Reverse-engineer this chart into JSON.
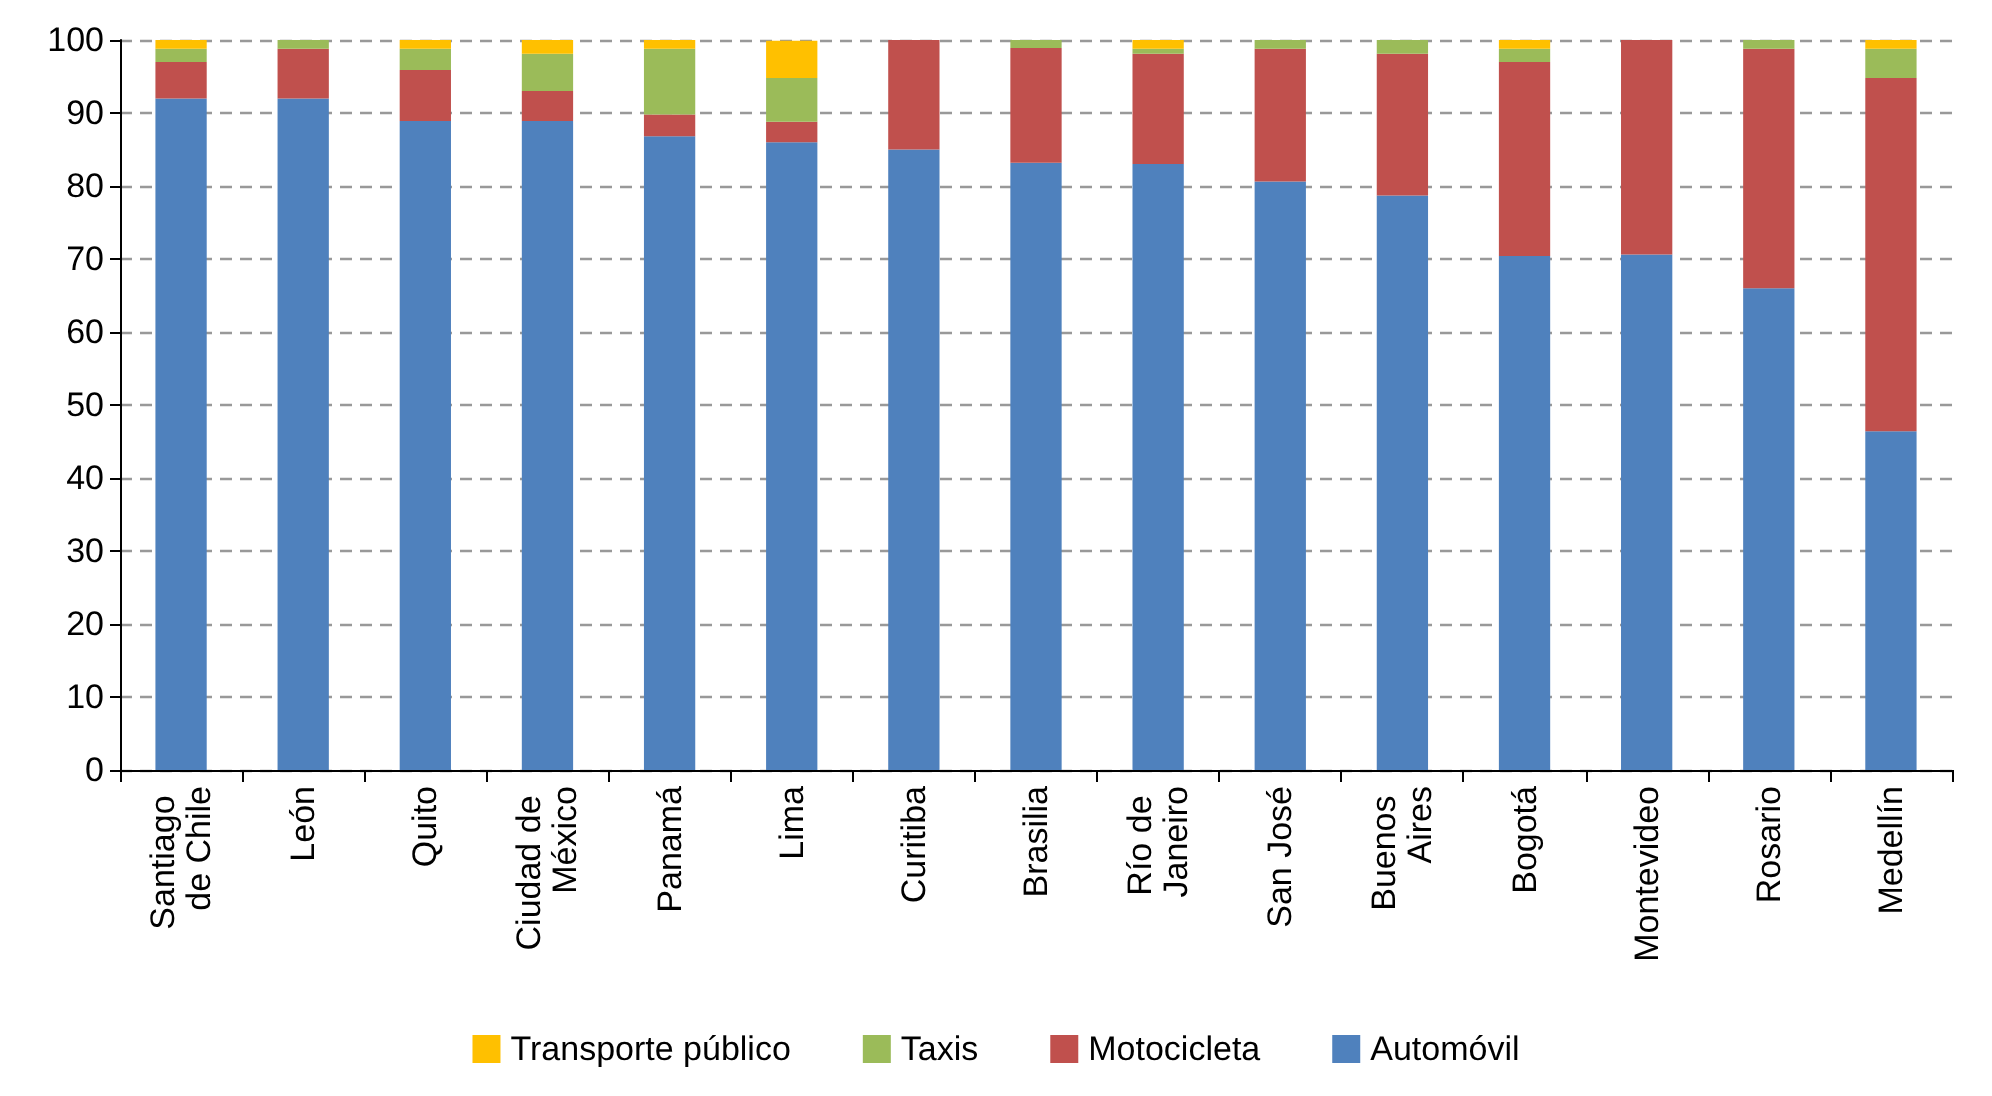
{
  "chart_data": {
    "type": "bar",
    "stacked": true,
    "categories": [
      "Santiago de Chile",
      "León",
      "Quito",
      "Ciudad de México",
      "Panamá",
      "Lima",
      "Curitiba",
      "Brasilia",
      "Río de Janeiro",
      "San José",
      "Buenos Aires",
      "Bogotá",
      "Montevideo",
      "Rosario",
      "Medellín"
    ],
    "series": [
      {
        "name": "Automóvil",
        "color": "#4f81bd",
        "values": [
          92,
          92,
          88.9,
          88.9,
          86.8,
          86,
          85,
          83.2,
          83,
          80.6,
          78.7,
          70.4,
          70.6,
          66,
          46.4
        ]
      },
      {
        "name": "Motocicleta",
        "color": "#c0504d",
        "values": [
          5,
          6.8,
          7,
          4.1,
          3,
          2.8,
          15,
          15.7,
          15.1,
          18.2,
          19.4,
          26.6,
          29.4,
          32.8,
          48.4
        ]
      },
      {
        "name": "Taxis",
        "color": "#9bbb59",
        "values": [
          1.8,
          1.2,
          2.9,
          5.1,
          9,
          6,
          0,
          1.2,
          0.7,
          1.2,
          1.9,
          1.8,
          0,
          1.2,
          4
        ]
      },
      {
        "name": "Transporte público",
        "color": "#ffc000",
        "values": [
          1.2,
          0,
          1.2,
          1.9,
          1.2,
          5.1,
          0,
          0,
          1.2,
          0,
          0,
          1.2,
          0,
          0,
          1.2
        ]
      }
    ],
    "ylim": [
      0,
      100
    ],
    "yticks": [
      0,
      10,
      20,
      30,
      40,
      50,
      60,
      70,
      80,
      90,
      100
    ],
    "grid": "y",
    "legend": "bottom"
  }
}
